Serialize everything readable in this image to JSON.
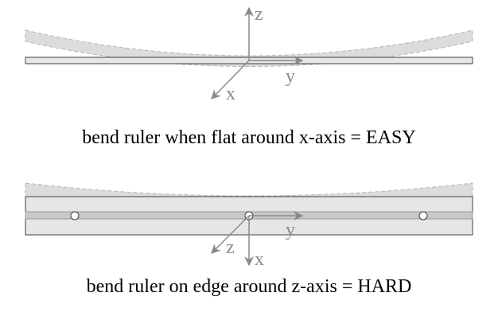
{
  "top_scenario": {
    "caption": "bend ruler when flat around x-axis = EASY",
    "axes": {
      "z": "z",
      "y": "y",
      "x": "x"
    }
  },
  "bottom_scenario": {
    "caption": "bend ruler on edge around z-axis = HARD",
    "axes": {
      "y": "y",
      "z": "z",
      "x": "x"
    }
  },
  "colors": {
    "ruler_fill": "#e6e6e6",
    "ruler_outline": "#404040",
    "bend_shadow": "#dcdcdc",
    "axis": "#8a8a8a",
    "caption_text": "#000000"
  }
}
